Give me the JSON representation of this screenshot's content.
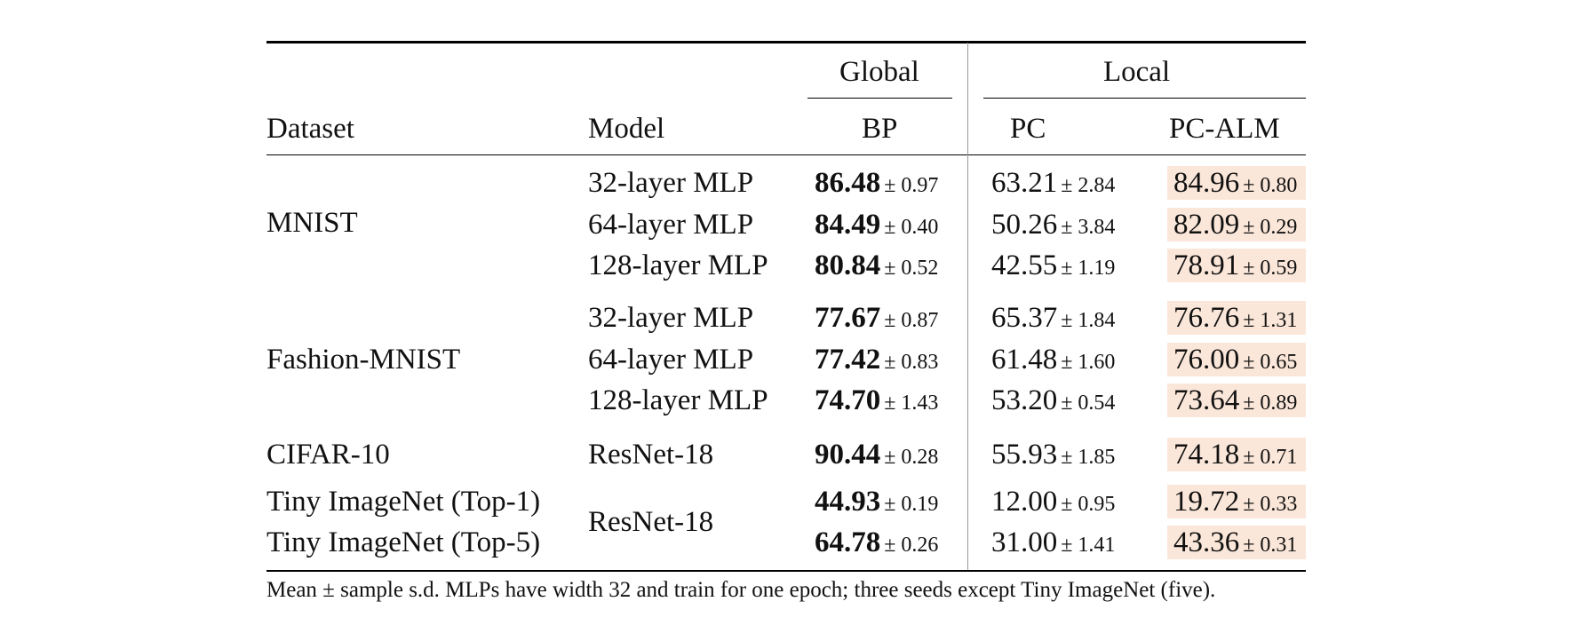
{
  "table": {
    "header": {
      "group_global": "Global",
      "group_local": "Local",
      "col_dataset": "Dataset",
      "col_model": "Model",
      "col_bp": "BP",
      "col_pc": "PC",
      "col_pcalm": "PC-ALM"
    },
    "datasets": [
      "MNIST",
      "Fashion-MNIST",
      "CIFAR-10",
      "Tiny ImageNet (Top-1)",
      "Tiny ImageNet (Top-5)"
    ],
    "rows": [
      {
        "model": "32-layer MLP",
        "bp": "86.48",
        "bp_sd": "± 0.97",
        "pc": "63.21",
        "pc_sd": "± 2.84",
        "alm": "84.96",
        "alm_sd": "± 0.80"
      },
      {
        "model": "64-layer MLP",
        "bp": "84.49",
        "bp_sd": "± 0.40",
        "pc": "50.26",
        "pc_sd": "± 3.84",
        "alm": "82.09",
        "alm_sd": "± 0.29"
      },
      {
        "model": "128-layer MLP",
        "bp": "80.84",
        "bp_sd": "± 0.52",
        "pc": "42.55",
        "pc_sd": "± 1.19",
        "alm": "78.91",
        "alm_sd": "± 0.59"
      },
      {
        "model": "32-layer MLP",
        "bp": "77.67",
        "bp_sd": "± 0.87",
        "pc": "65.37",
        "pc_sd": "± 1.84",
        "alm": "76.76",
        "alm_sd": "± 1.31"
      },
      {
        "model": "64-layer MLP",
        "bp": "77.42",
        "bp_sd": "± 0.83",
        "pc": "61.48",
        "pc_sd": "± 1.60",
        "alm": "76.00",
        "alm_sd": "± 0.65"
      },
      {
        "model": "128-layer MLP",
        "bp": "74.70",
        "bp_sd": "± 1.43",
        "pc": "53.20",
        "pc_sd": "± 0.54",
        "alm": "73.64",
        "alm_sd": "± 0.89"
      },
      {
        "model": "ResNet-18",
        "bp": "90.44",
        "bp_sd": "± 0.28",
        "pc": "55.93",
        "pc_sd": "± 1.85",
        "alm": "74.18",
        "alm_sd": "± 0.71"
      },
      {
        "model": "",
        "bp": "44.93",
        "bp_sd": "± 0.19",
        "pc": "12.00",
        "pc_sd": "± 0.95",
        "alm": "19.72",
        "alm_sd": "± 0.33"
      },
      {
        "model": "",
        "bp": "64.78",
        "bp_sd": "± 0.26",
        "pc": "31.00",
        "pc_sd": "± 1.41",
        "alm": "43.36",
        "alm_sd": "± 0.31"
      }
    ],
    "tiny_model": "ResNet-18",
    "highlight_color": "#fbe7d9"
  },
  "caption": "Mean ± sample s.d. MLPs have width 32 and train for one epoch; three seeds except Tiny ImageNet (five)."
}
